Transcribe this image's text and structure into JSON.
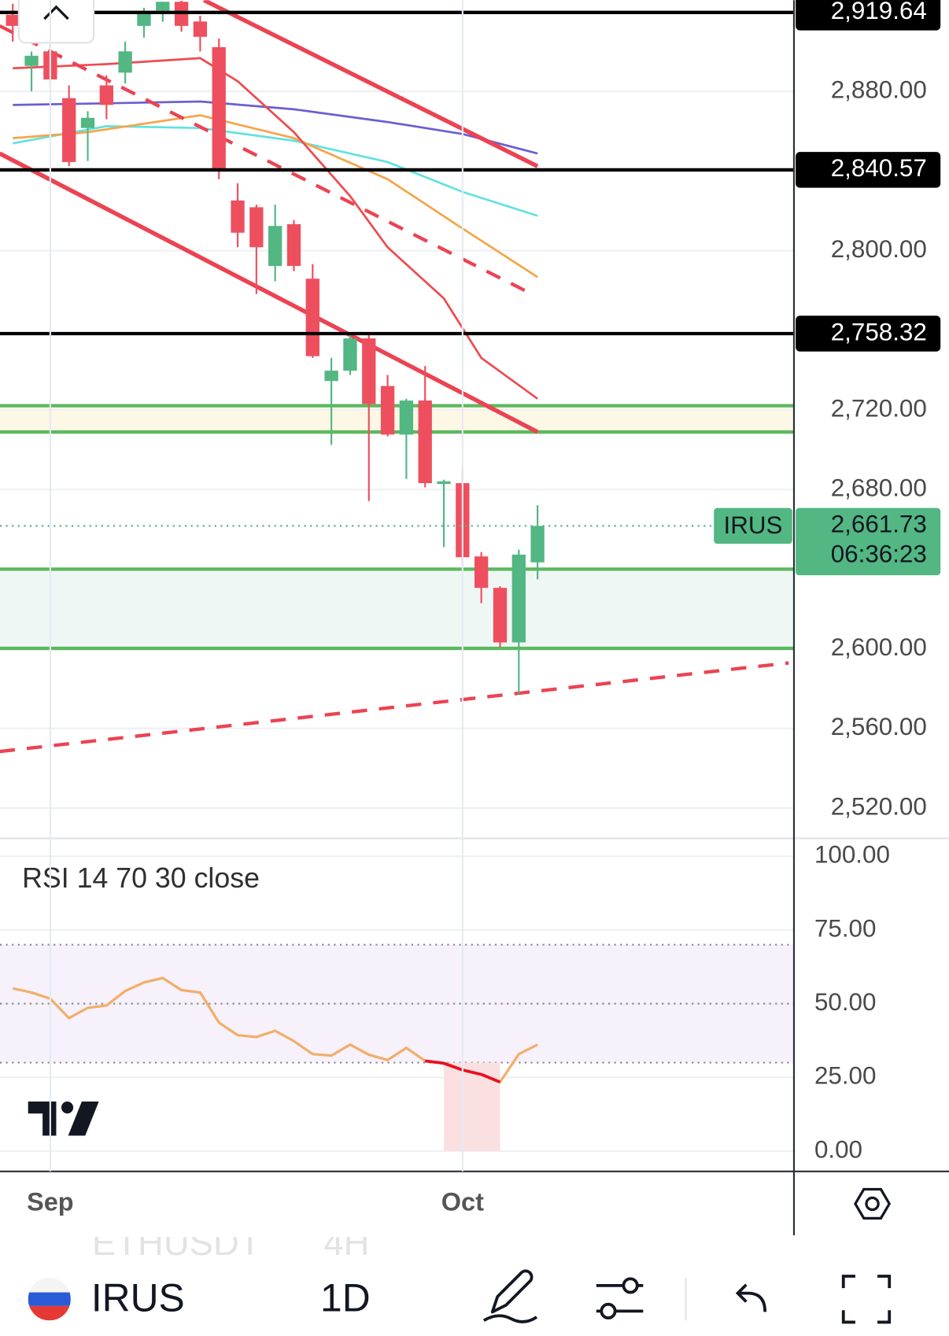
{
  "chart_data": [
    {
      "type": "candlestick",
      "symbol": "IRUS",
      "countdown": "06:36:23",
      "categories": [
        null,
        null,
        "Sep",
        null,
        null,
        null,
        null,
        null,
        null,
        null,
        null,
        null,
        null,
        null,
        null,
        null,
        null,
        null,
        null,
        null,
        null,
        null,
        null,
        null,
        "Oct",
        null,
        null,
        null,
        null
      ],
      "open": [
        2918.5,
        2892.8,
        2900.1,
        2876.6,
        2861.6,
        2883.0,
        2889.4,
        2912.9,
        2920.6,
        2925.0,
        2915.1,
        2902.2,
        2825.2,
        2821.8,
        2792.3,
        2813.3,
        2785.9,
        2734.5,
        2739.7,
        2755.9,
        2732.0,
        2707.6,
        2724.7,
        2682.8,
        2683.2,
        2646.4,
        2630.6,
        2603.2,
        2643.4
      ],
      "high": [
        2924.0,
        2900.0,
        2905.0,
        2883.0,
        2870.0,
        2888.0,
        2905.0,
        2922.0,
        2925.0,
        2925.5,
        2918.0,
        2906.5,
        2833.8,
        2823.1,
        2823.1,
        2815.4,
        2793.2,
        2746.1,
        2757.6,
        2757.6,
        2737.5,
        2725.6,
        2742.0,
        2684.9,
        2690.5,
        2648.6,
        2631.4,
        2649.8,
        2672.1
      ],
      "low": [
        2905.0,
        2880.0,
        2884.0,
        2842.4,
        2845.0,
        2866.0,
        2884.0,
        2907.0,
        2915.0,
        2910.0,
        2900.0,
        2835.9,
        2801.7,
        2778.2,
        2784.6,
        2789.7,
        2746.1,
        2702.5,
        2737.5,
        2674.2,
        2706.7,
        2685.3,
        2681.1,
        2651.1,
        2641.3,
        2622.9,
        2600.6,
        2577.5,
        2634.9
      ],
      "close": [
        2912.9,
        2897.9,
        2886.0,
        2844.5,
        2866.7,
        2873.2,
        2900.1,
        2919.8,
        2925.0,
        2912.9,
        2907.4,
        2840.2,
        2809.0,
        2801.7,
        2812.4,
        2792.3,
        2747.0,
        2739.7,
        2755.9,
        2723.0,
        2707.6,
        2724.7,
        2683.2,
        2684.1,
        2646.0,
        2630.6,
        2603.2,
        2647.3,
        2661.73
      ],
      "up_color": "#52b782",
      "down_color": "#ee4f5e",
      "ylim": [
        2505.2,
        2925.8
      ],
      "yticks": [
        {
          "value": 2520,
          "label": "2,520.00"
        },
        {
          "value": 2560,
          "label": "2,560.00"
        },
        {
          "value": 2600,
          "label": "2,600.00"
        },
        {
          "value": 2680,
          "label": "2,680.00"
        },
        {
          "value": 2720,
          "label": "2,720.00"
        },
        {
          "value": 2800,
          "label": "2,800.00"
        },
        {
          "value": 2880,
          "label": "2,880.00"
        }
      ],
      "grid": true,
      "price_lines": [
        {
          "value": 2919.64,
          "label": "2,919.64"
        },
        {
          "value": 2840.57,
          "label": "2,840.57"
        },
        {
          "value": 2758.32,
          "label": "2,758.32"
        }
      ],
      "zones": [
        {
          "from": 2708.9,
          "to": 2722.1,
          "fill": "#fdf8e6"
        },
        {
          "from": 2600.2,
          "to": 2640.0,
          "fill": "#eff7f5"
        }
      ],
      "zone_color": "#5cb85f",
      "last_price": {
        "value": 2661.73,
        "label": "2,661.73"
      },
      "overlays": [
        {
          "color": "#6a5fd1",
          "x": [
            0,
            5,
            10,
            15,
            20,
            24,
            28
          ],
          "values": [
            2873.2,
            2874.0,
            2874.9,
            2871.0,
            2864.6,
            2858.6,
            2848.8
          ]
        },
        {
          "color": "#5fe3e0",
          "x": [
            0,
            5,
            10,
            15,
            20,
            24,
            28
          ],
          "values": [
            2853.9,
            2862.5,
            2861.6,
            2855.2,
            2844.5,
            2829.5,
            2817.5
          ]
        },
        {
          "color": "#f5a54a",
          "x": [
            0,
            4,
            10,
            15,
            20,
            24,
            28
          ],
          "values": [
            2856.5,
            2859.5,
            2868.0,
            2856.5,
            2835.9,
            2811.1,
            2786.7
          ]
        },
        {
          "color": "#ef4a50",
          "x": [
            0,
            5,
            10,
            12,
            15,
            18,
            20,
            23,
            25,
            28
          ],
          "values": [
            2891.6,
            2893.7,
            2896.7,
            2885.1,
            2859.5,
            2827.4,
            2801.7,
            2776.0,
            2746.1,
            2725.6
          ]
        }
      ],
      "trendlines": [
        {
          "color": "#ec4352",
          "dashed": false,
          "x": [
            10.2,
            28
          ],
          "values": [
            2925.8,
            2842.4
          ]
        },
        {
          "color": "#ec4352",
          "dashed": false,
          "x": [
            -0.7,
            28
          ],
          "values": [
            2848.8,
            2708.9
          ]
        },
        {
          "color": "#ec4352",
          "dashed": true,
          "x": [
            -0.7,
            27.7
          ],
          "values": [
            2912.9,
            2778.2
          ]
        },
        {
          "color": "#ec4352",
          "dashed": true,
          "x": [
            -0.7,
            41.4
          ],
          "values": [
            2548.4,
            2592.9
          ]
        }
      ]
    },
    {
      "type": "line",
      "title": "RSI 14 70 30 close",
      "values": [
        55.2,
        53.8,
        51.7,
        45.1,
        48.6,
        49.4,
        54.3,
        57.2,
        58.7,
        54.6,
        53.8,
        43.6,
        39.3,
        38.7,
        40.8,
        37.3,
        32.9,
        32.4,
        36.1,
        32.7,
        30.9,
        35.0,
        30.6,
        29.8,
        27.5,
        26.0,
        23.4,
        32.9,
        36.1
      ],
      "color": "#f2ae6b",
      "oversold_color": "#e8101e",
      "bands": [
        30,
        70
      ],
      "midline": 50,
      "ylim": [
        -6.9,
        105.8
      ],
      "yticks": [
        {
          "value": 0,
          "label": "0.00"
        },
        {
          "value": 25,
          "label": "25.00"
        },
        {
          "value": 50,
          "label": "50.00"
        },
        {
          "value": 75,
          "label": "75.00"
        },
        {
          "value": 100,
          "label": "100.00"
        }
      ]
    }
  ],
  "toolbar": {
    "ghost_symbol": "ETHUSDT",
    "ghost_interval": "4H",
    "symbol": "IRUS",
    "interval": "1D"
  }
}
